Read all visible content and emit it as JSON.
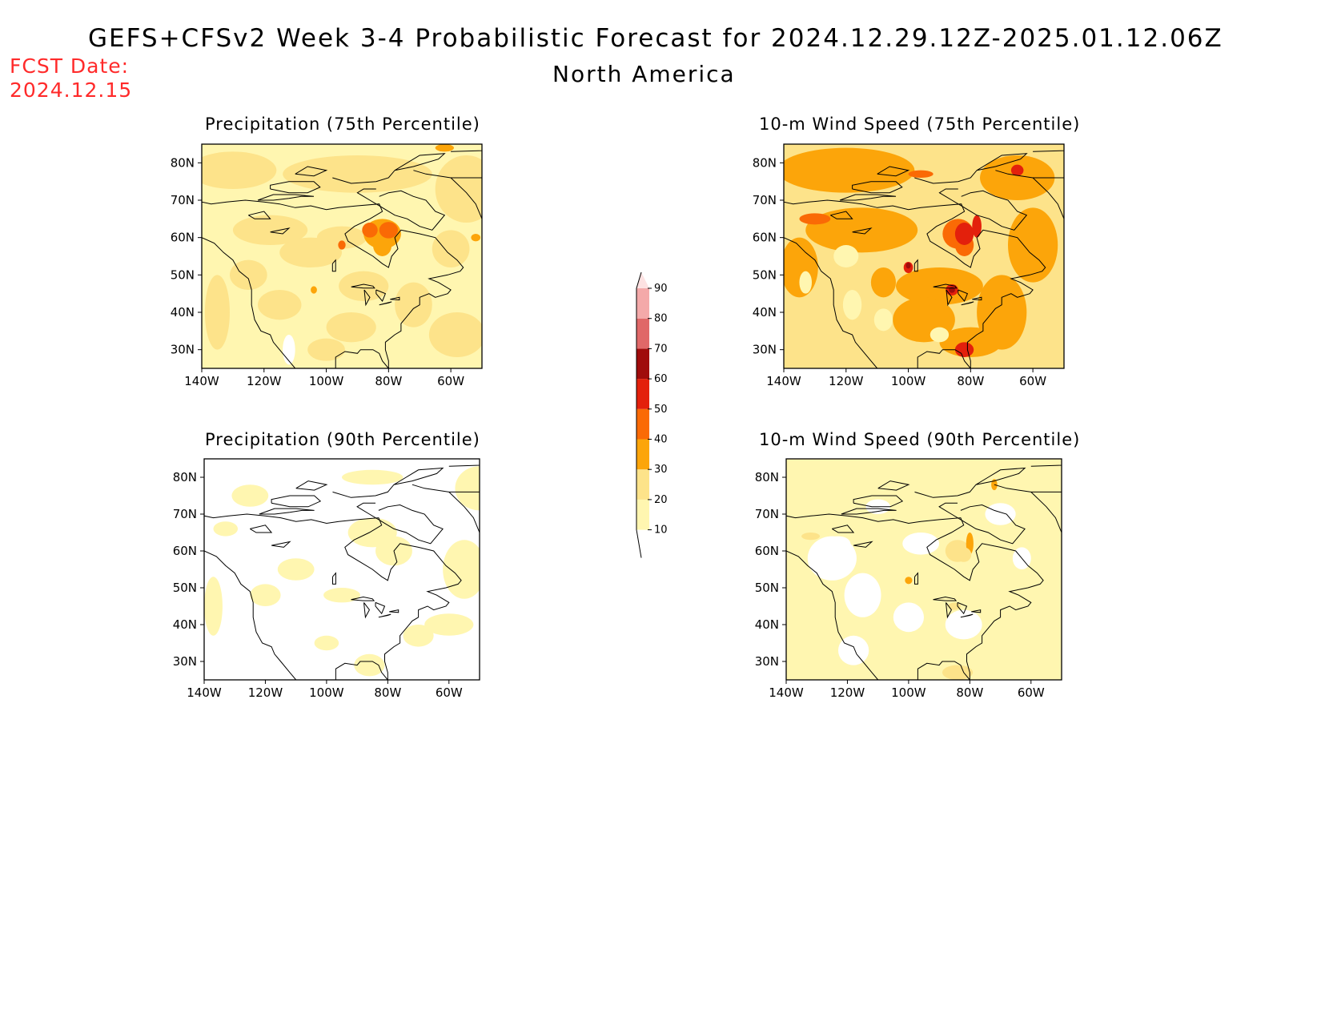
{
  "header": {
    "title": "GEFS+CFSv2 Week 3-4 Probabilistic Forecast for 2024.12.29.12Z-2025.01.12.06Z",
    "subtitle": "North America",
    "fcst_label": "FCST Date:",
    "fcst_date": "2024.12.15"
  },
  "colors": {
    "c0": "#ffffff",
    "c10": "#fff6b0",
    "c20": "#fde38a",
    "c30": "#fca50a",
    "c40": "#fa6a05",
    "c50": "#e3200c",
    "c60": "#a00c0c",
    "c70": "#e06868",
    "c80": "#f4a9a9",
    "c90": "#fde2e2"
  },
  "colorbar": {
    "levels": [
      "10",
      "20",
      "30",
      "40",
      "50",
      "60",
      "70",
      "80",
      "90"
    ]
  },
  "axes": {
    "lat_labels": [
      "80N",
      "70N",
      "60N",
      "50N",
      "40N",
      "30N"
    ],
    "lon_labels": [
      "140W",
      "120W",
      "100W",
      "80W",
      "60W"
    ]
  },
  "panels": [
    {
      "id": "precip-75",
      "title": "Precipitation (75th Percentile)",
      "intensity": "moderate"
    },
    {
      "id": "wind-75",
      "title": "10-m Wind Speed (75th Percentile)",
      "intensity": "high"
    },
    {
      "id": "precip-90",
      "title": "Precipitation (90th Percentile)",
      "intensity": "low"
    },
    {
      "id": "wind-90",
      "title": "10-m Wind Speed (90th Percentile)",
      "intensity": "lowmod"
    }
  ]
}
